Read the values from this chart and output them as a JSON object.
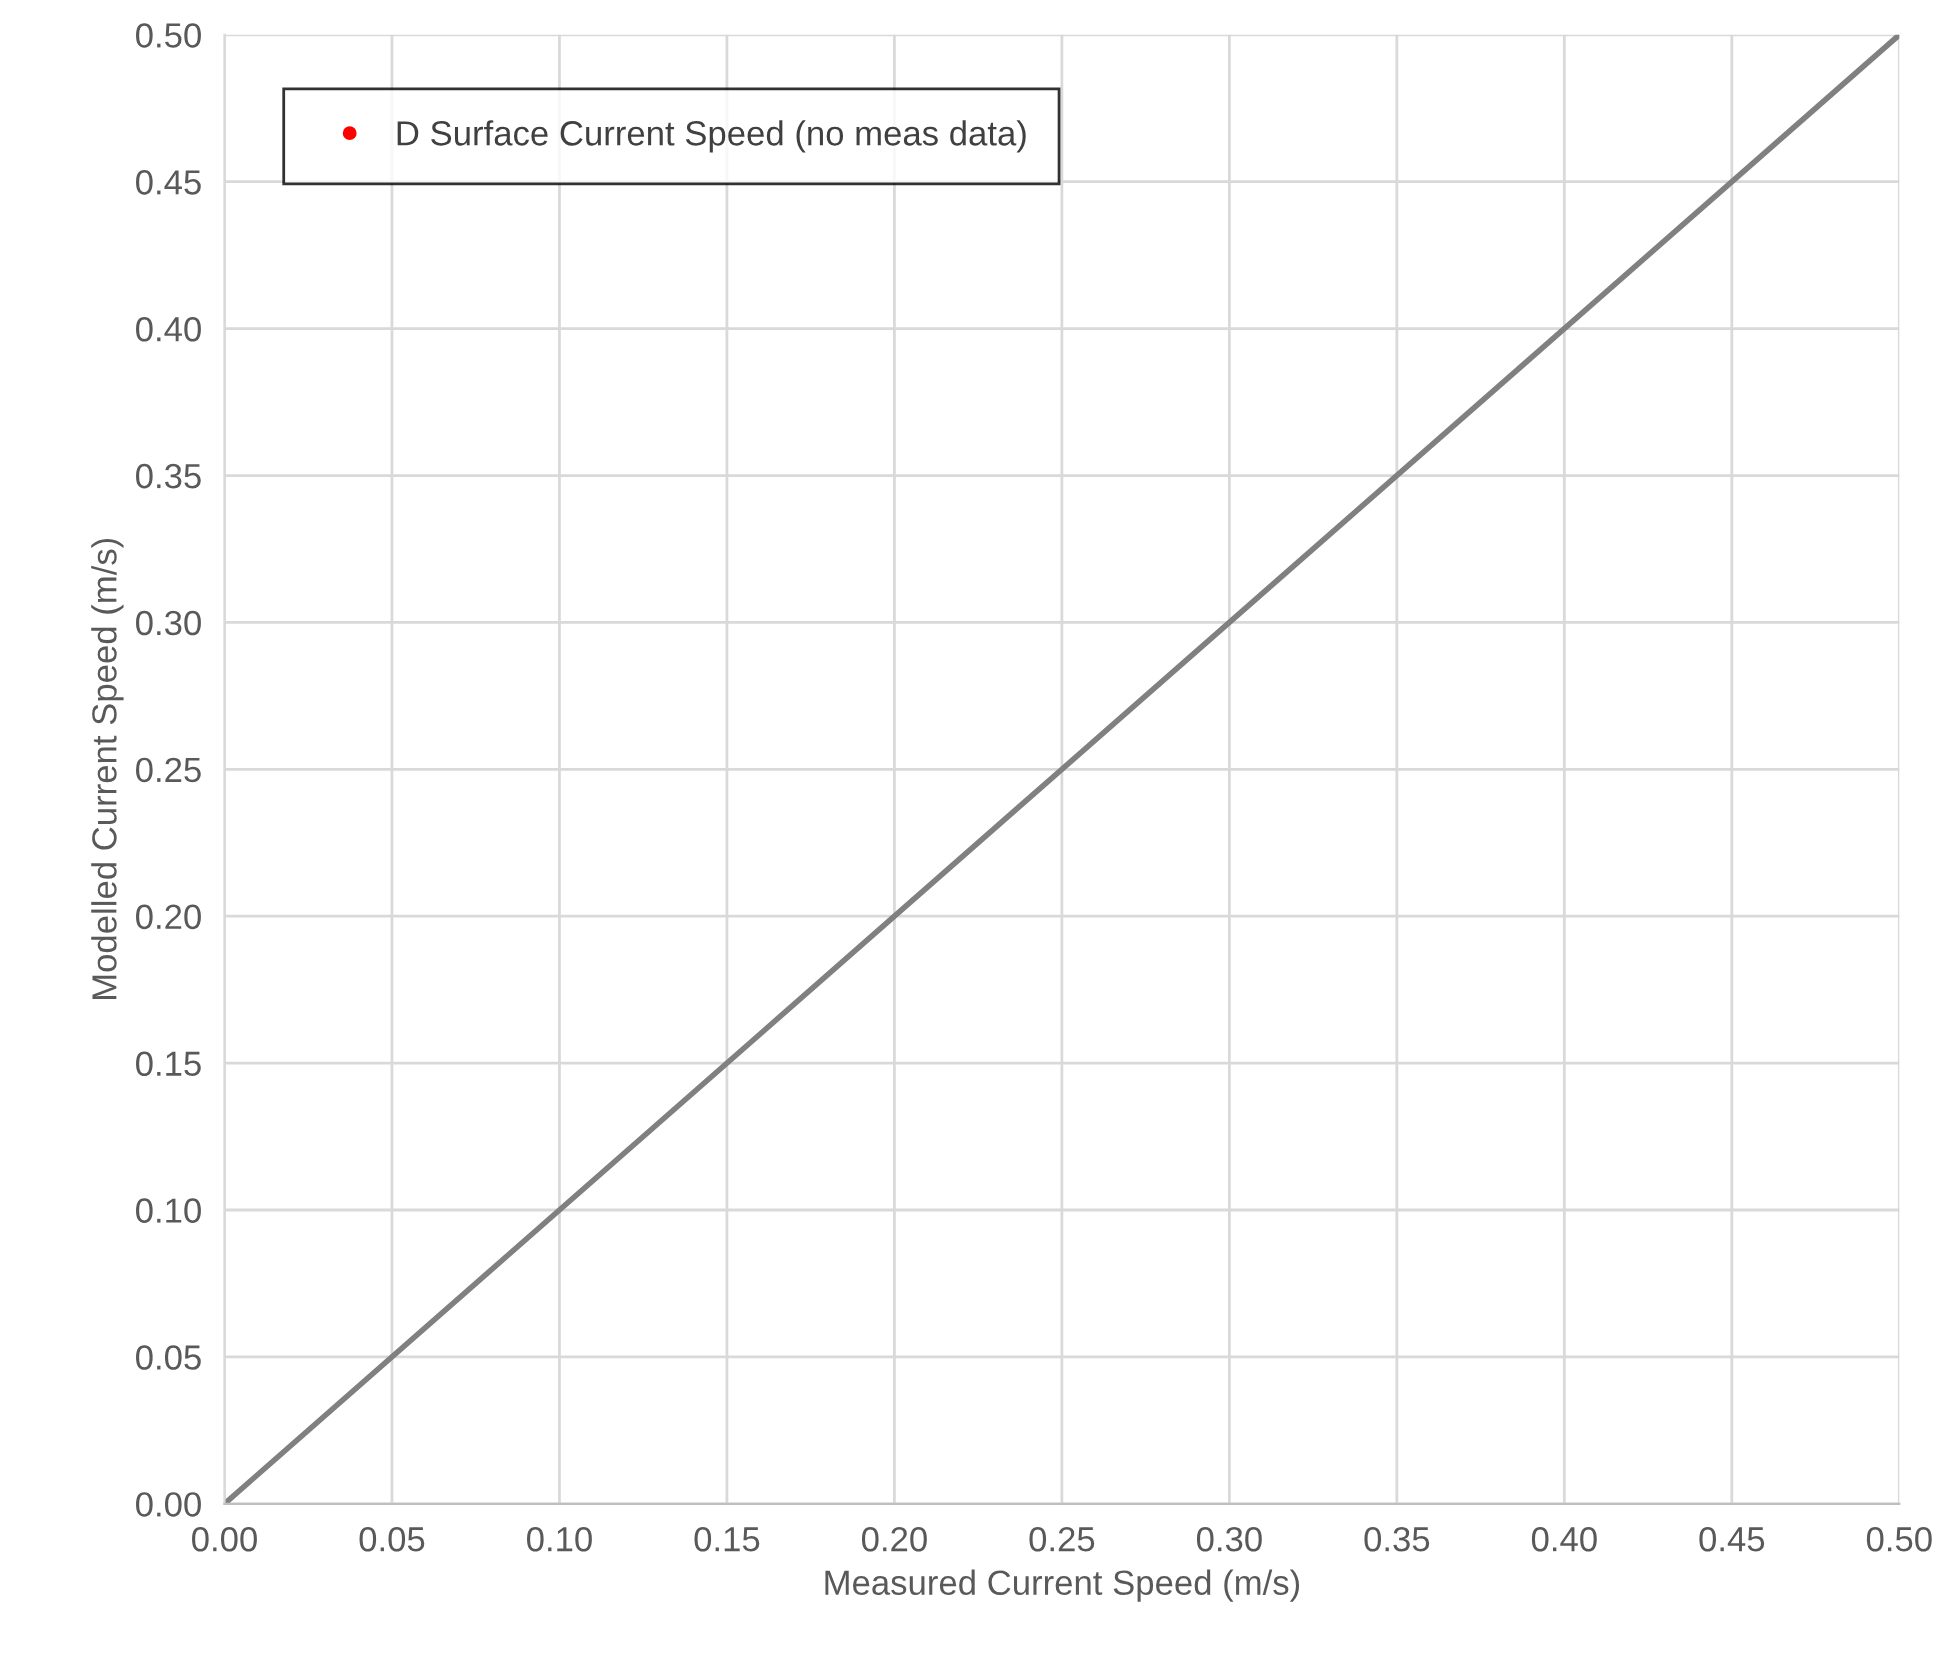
{
  "chart_data": {
    "type": "scatter",
    "xlabel": "Measured Current Speed (m/s)",
    "ylabel": "Modelled Current Speed (m/s)",
    "xlim": [
      0,
      0.5
    ],
    "ylim": [
      0,
      0.5
    ],
    "xticks": [
      {
        "value": 0,
        "label": "0.00"
      },
      {
        "value": 0.05,
        "label": "0.05"
      },
      {
        "value": 0.1,
        "label": "0.10"
      },
      {
        "value": 0.15,
        "label": "0.15"
      },
      {
        "value": 0.2,
        "label": "0.20"
      },
      {
        "value": 0.25,
        "label": "0.25"
      },
      {
        "value": 0.3,
        "label": "0.30"
      },
      {
        "value": 0.35,
        "label": "0.35"
      },
      {
        "value": 0.4,
        "label": "0.40"
      },
      {
        "value": 0.45,
        "label": "0.45"
      },
      {
        "value": 0.5,
        "label": "0.50"
      }
    ],
    "yticks": [
      {
        "value": 0,
        "label": "0.00"
      },
      {
        "value": 0.05,
        "label": "0.05"
      },
      {
        "value": 0.1,
        "label": "0.10"
      },
      {
        "value": 0.15,
        "label": "0.15"
      },
      {
        "value": 0.2,
        "label": "0.20"
      },
      {
        "value": 0.25,
        "label": "0.25"
      },
      {
        "value": 0.3,
        "label": "0.30"
      },
      {
        "value": 0.35,
        "label": "0.35"
      },
      {
        "value": 0.4,
        "label": "0.40"
      },
      {
        "value": 0.45,
        "label": "0.45"
      },
      {
        "value": 0.5,
        "label": "0.50"
      }
    ],
    "grid": true,
    "legend": "top left",
    "marker": "circle",
    "series": [
      {
        "name": "D Surface Current Speed (no meas data)",
        "color": "#ff0000"
      },
      {
        "type": "line",
        "color": "#808080",
        "marker": "none",
        "x": [
          0,
          0.5
        ],
        "values": [
          0,
          0.5
        ]
      }
    ]
  }
}
